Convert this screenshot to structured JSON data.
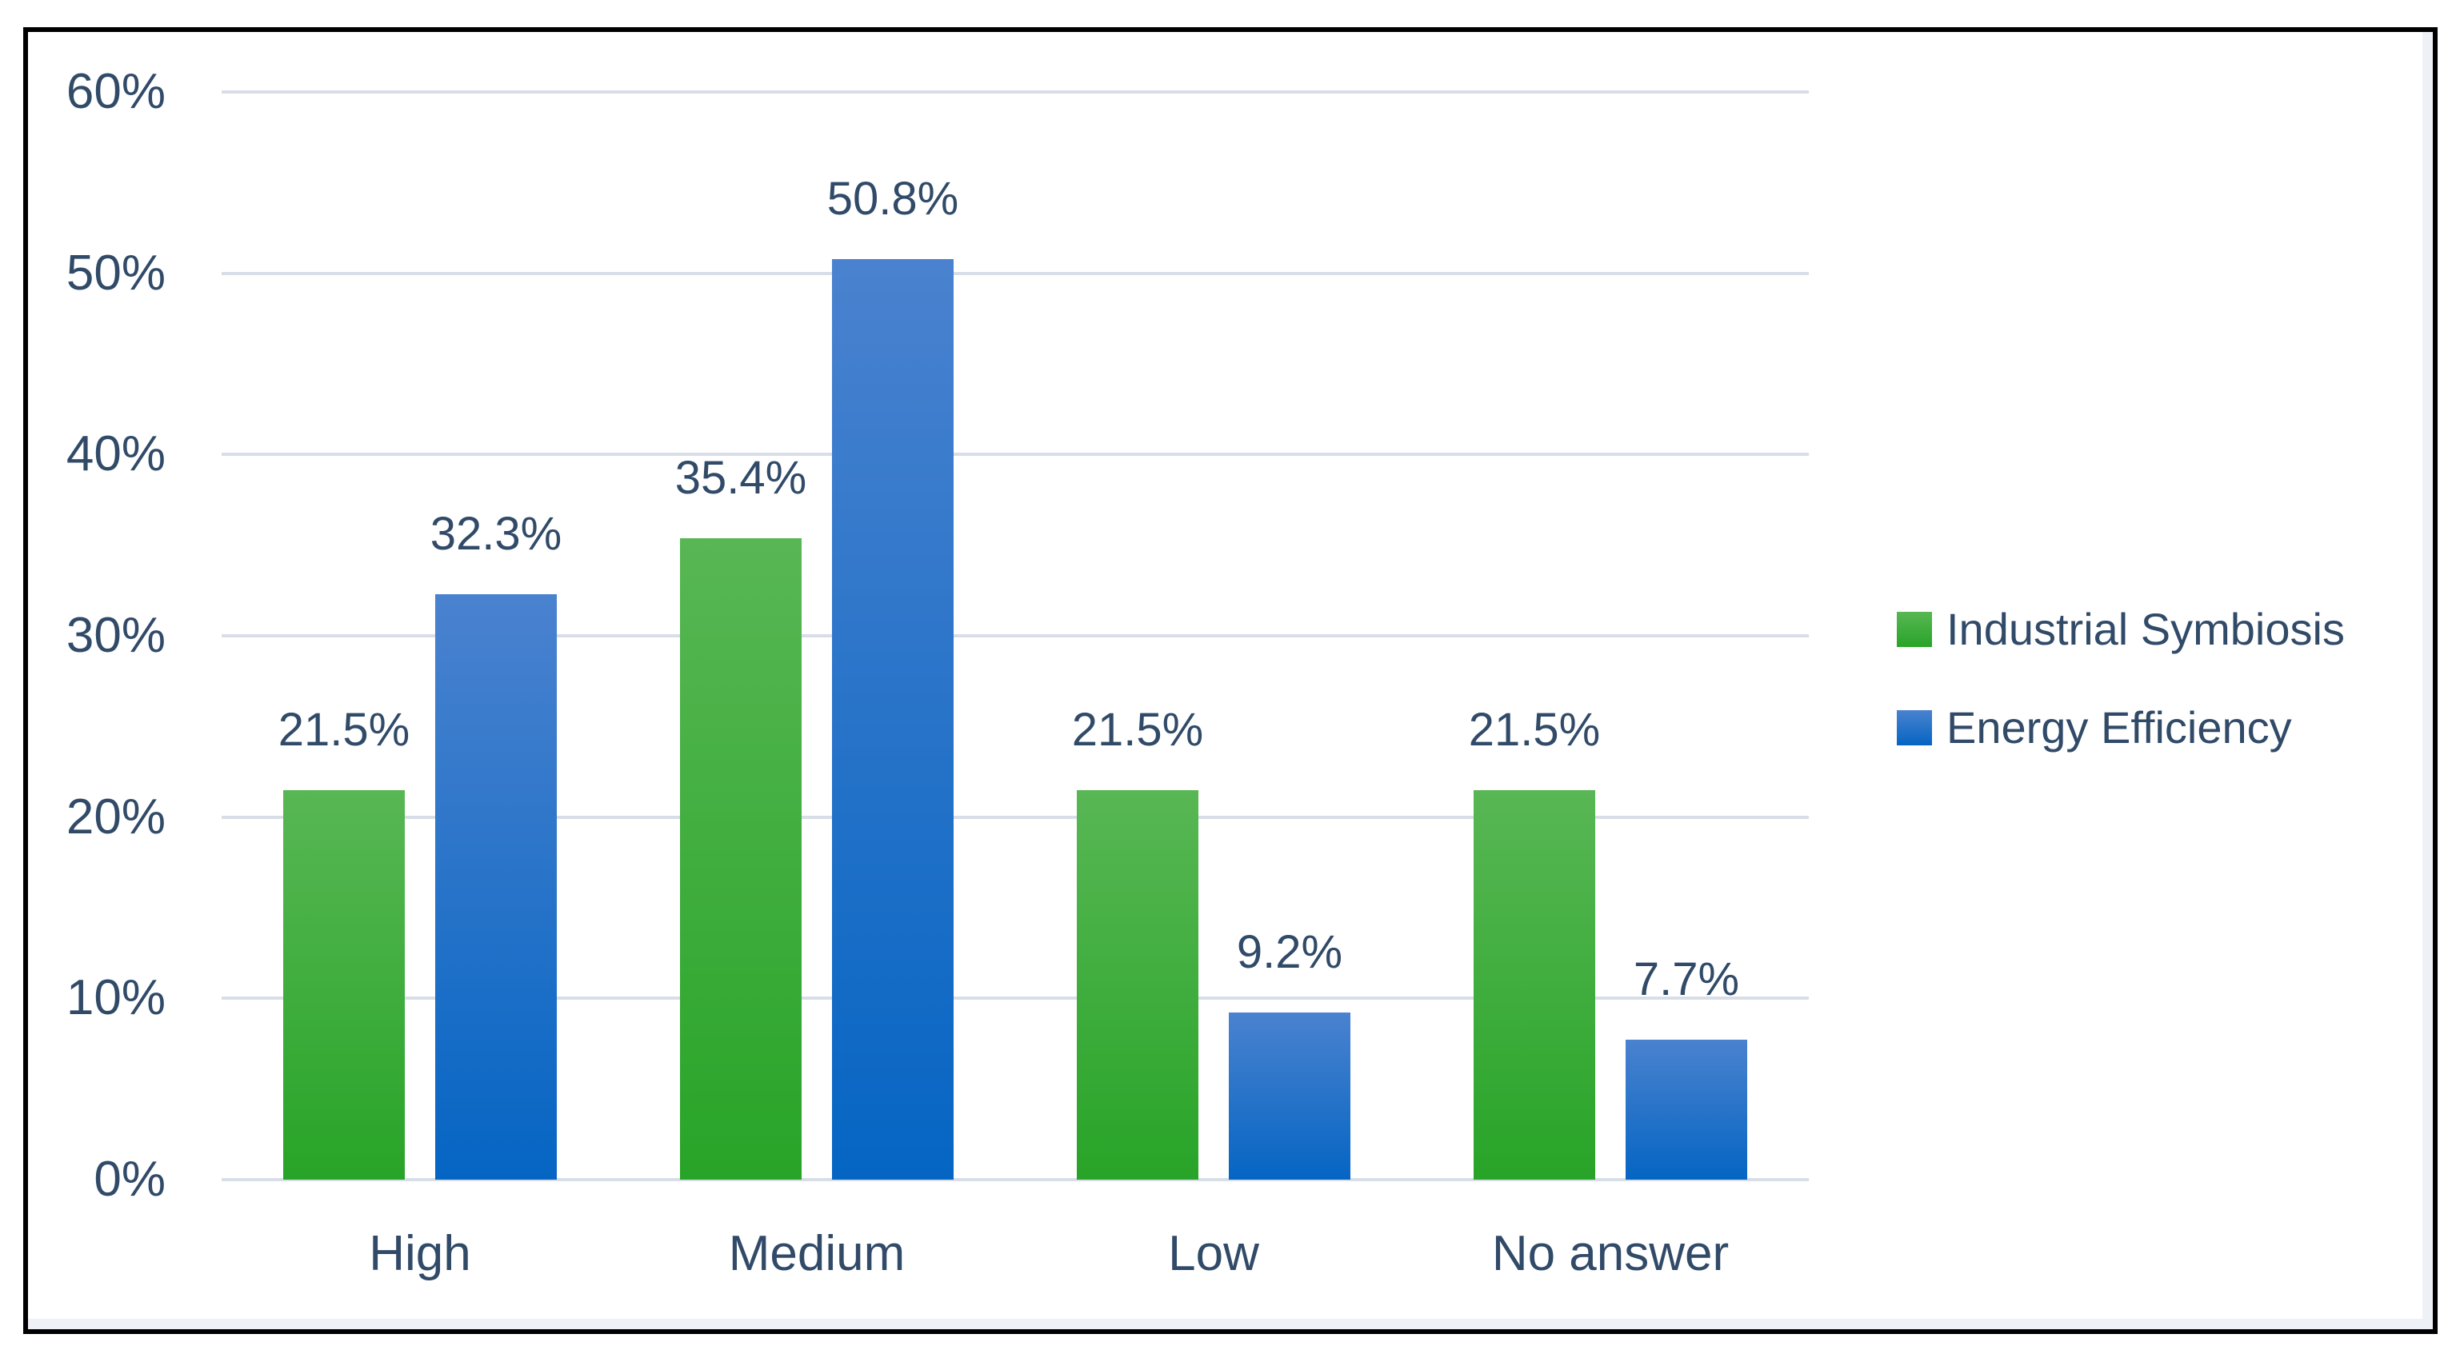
{
  "chart_data": {
    "type": "bar",
    "title": "",
    "xlabel": "",
    "ylabel": "",
    "categories": [
      "High",
      "Medium",
      "Low",
      "No answer"
    ],
    "series": [
      {
        "name": "Industrial Symbiosis",
        "values": [
          21.5,
          35.4,
          21.5,
          21.5
        ],
        "data_labels": [
          "21.5%",
          "35.4%",
          "21.5%",
          "21.5%"
        ],
        "color_top": "#58b754",
        "color_bottom": "#28a428"
      },
      {
        "name": "Energy Efficiency",
        "values": [
          32.3,
          50.8,
          9.2,
          7.7
        ],
        "data_labels": [
          "32.3%",
          "50.8%",
          "9.2%",
          "7.7%"
        ],
        "color_top": "#4a82cf",
        "color_bottom": "#0565c3"
      }
    ],
    "ylim": [
      0,
      60
    ],
    "ytick_step": 10,
    "ytick_labels": [
      "0%",
      "10%",
      "20%",
      "30%",
      "40%",
      "50%",
      "60%"
    ],
    "grid": true,
    "legend_position": "right"
  },
  "colors": {
    "text": "#304a68",
    "gridline": "#d8dee8",
    "frame_border": "#000000",
    "inner_edge": "#eef1f6",
    "background": "#ffffff"
  }
}
